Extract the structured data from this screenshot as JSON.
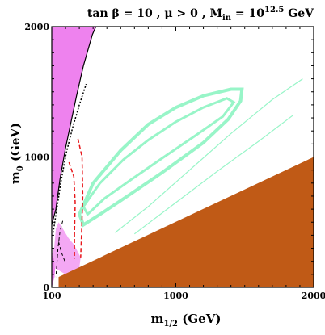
{
  "chart_data": {
    "type": "area",
    "title": {
      "pre": "tan β = 10 ,  μ > 0 , M",
      "sub": "in",
      "mid": " = 10",
      "sup": "12.5",
      "post": " GeV"
    },
    "xlabel": {
      "main": "m",
      "sub": "1/2",
      "unit": " (GeV)"
    },
    "ylabel": {
      "main": "m",
      "sub": "0",
      "unit": " (GeV)"
    },
    "xlim": [
      100,
      2000
    ],
    "ylim": [
      0,
      2000
    ],
    "x_ticks": [
      {
        "value": 100,
        "label": "100"
      },
      {
        "value": 1000,
        "label": "1000"
      },
      {
        "value": 2000,
        "label": "2000"
      }
    ],
    "y_ticks": [
      {
        "value": 0,
        "label": "0"
      },
      {
        "value": 1000,
        "label": "1000"
      },
      {
        "value": 2000,
        "label": "2000"
      }
    ],
    "colors": {
      "magenta_region": "#ee82ee",
      "pink_region": "#f4a8f4",
      "brown_region": "#c05a16",
      "green_band": "#98f5c8",
      "red_dashed": "#e8161a",
      "black_lines": "#000000"
    },
    "regions": {
      "magenta_upper": [
        [
          100,
          2000
        ],
        [
          420,
          2000
        ],
        [
          395,
          1940
        ],
        [
          330,
          1700
        ],
        [
          280,
          1470
        ],
        [
          240,
          1270
        ],
        [
          200,
          1070
        ],
        [
          160,
          830
        ],
        [
          130,
          600
        ],
        [
          105,
          500
        ],
        [
          100,
          480
        ]
      ],
      "magenta_lower_small": [
        [
          100,
          0
        ],
        [
          100,
          250
        ],
        [
          118,
          220
        ],
        [
          125,
          150
        ],
        [
          120,
          80
        ],
        [
          110,
          40
        ]
      ],
      "pink_region": [
        [
          100,
          250
        ],
        [
          118,
          310
        ],
        [
          130,
          450
        ],
        [
          150,
          500
        ],
        [
          180,
          450
        ],
        [
          220,
          380
        ],
        [
          260,
          330
        ],
        [
          310,
          230
        ],
        [
          300,
          150
        ],
        [
          200,
          100
        ],
        [
          120,
          150
        ],
        [
          118,
          220
        ]
      ],
      "brown_lower_right": [
        [
          150,
          0
        ],
        [
          2000,
          0
        ],
        [
          2000,
          1000
        ],
        [
          150,
          80
        ]
      ]
    },
    "lines": {
      "boundary_black": [
        [
          100,
          480
        ],
        [
          130,
          600
        ],
        [
          160,
          830
        ],
        [
          200,
          1070
        ],
        [
          240,
          1270
        ],
        [
          280,
          1470
        ],
        [
          330,
          1700
        ],
        [
          395,
          1940
        ],
        [
          420,
          2000
        ]
      ],
      "boundary_dotted": [
        [
          110,
          420
        ],
        [
          135,
          590
        ],
        [
          165,
          800
        ],
        [
          205,
          1030
        ],
        [
          250,
          1220
        ],
        [
          300,
          1400
        ],
        [
          350,
          1560
        ]
      ],
      "red_dashed_1": [
        [
          225,
          960
        ],
        [
          260,
          850
        ],
        [
          270,
          650
        ],
        [
          265,
          400
        ],
        [
          265,
          220
        ]
      ],
      "red_dashed_2": [
        [
          290,
          1140
        ],
        [
          320,
          1000
        ],
        [
          325,
          700
        ],
        [
          315,
          380
        ],
        [
          310,
          230
        ]
      ],
      "black_dashed_1": [
        [
          180,
          510
        ],
        [
          160,
          430
        ],
        [
          145,
          300
        ],
        [
          135,
          150
        ],
        [
          130,
          80
        ]
      ],
      "black_dashed_2": [
        [
          150,
          350
        ],
        [
          170,
          270
        ],
        [
          195,
          200
        ]
      ],
      "green_ellipse_outer": [
        [
          300,
          560
        ],
        [
          400,
          800
        ],
        [
          600,
          1050
        ],
        [
          800,
          1250
        ],
        [
          1000,
          1380
        ],
        [
          1200,
          1470
        ],
        [
          1400,
          1520
        ],
        [
          1480,
          1520
        ],
        [
          1470,
          1430
        ],
        [
          1380,
          1290
        ],
        [
          1200,
          1110
        ],
        [
          900,
          880
        ],
        [
          650,
          700
        ],
        [
          450,
          560
        ],
        [
          330,
          480
        ]
      ],
      "green_ellipse_inner": [
        [
          330,
          620
        ],
        [
          450,
          800
        ],
        [
          620,
          980
        ],
        [
          800,
          1130
        ],
        [
          1000,
          1270
        ],
        [
          1200,
          1380
        ],
        [
          1370,
          1450
        ],
        [
          1420,
          1420
        ],
        [
          1340,
          1310
        ],
        [
          1150,
          1170
        ],
        [
          900,
          990
        ],
        [
          680,
          830
        ],
        [
          480,
          680
        ],
        [
          360,
          560
        ]
      ],
      "green_thin_upper": [
        [
          560,
          420
        ],
        [
          800,
          620
        ],
        [
          1100,
          900
        ],
        [
          1400,
          1180
        ],
        [
          1700,
          1440
        ],
        [
          1920,
          1600
        ]
      ],
      "green_thin_lower": [
        [
          700,
          410
        ],
        [
          1000,
          650
        ],
        [
          1300,
          890
        ],
        [
          1600,
          1120
        ],
        [
          1850,
          1320
        ]
      ]
    }
  }
}
